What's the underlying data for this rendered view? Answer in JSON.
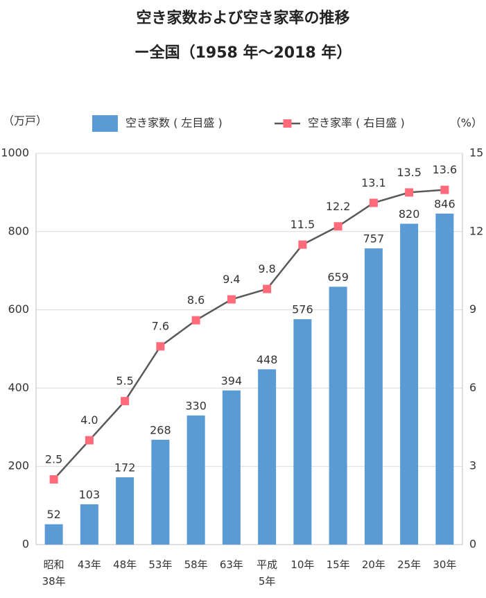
{
  "chart_data": {
    "type": "bar",
    "title": "空き家数および空き家率の推移",
    "subtitle": "ー全国（1958 年〜2018 年）",
    "ylabel": "（万戸）",
    "y2label": "（%）",
    "categories": [
      "昭和\n38年",
      "43年",
      "48年",
      "53年",
      "58年",
      "63年",
      "平成\n5年",
      "10年",
      "15年",
      "20年",
      "25年",
      "30年"
    ],
    "series": [
      {
        "name": "空き家数 ( 左目盛 )",
        "type": "bar",
        "color": "#5b9bd5",
        "values": [
          52,
          103,
          172,
          268,
          330,
          394,
          448,
          576,
          659,
          757,
          820,
          846
        ]
      },
      {
        "name": "空き家率 ( 右目盛 )",
        "type": "line",
        "axis": "y2",
        "color": "#595959",
        "marker_color": "#ff6b7a",
        "values": [
          2.5,
          4.0,
          5.5,
          7.6,
          8.6,
          9.4,
          9.8,
          11.5,
          12.2,
          13.1,
          13.5,
          13.6
        ],
        "value_labels": [
          "2.5",
          "4.0",
          "5.5",
          "7.6",
          "8.6",
          "9.4",
          "9.8",
          "11.5",
          "12.2",
          "13.1",
          "13.5",
          "13.6"
        ]
      }
    ],
    "ylim": [
      0,
      1000
    ],
    "yticks": [
      0,
      200,
      400,
      600,
      800,
      1000
    ],
    "y2lim": [
      0,
      15
    ],
    "y2ticks": [
      0,
      3,
      6,
      9,
      12,
      15
    ],
    "grid": true,
    "legend": "top"
  }
}
